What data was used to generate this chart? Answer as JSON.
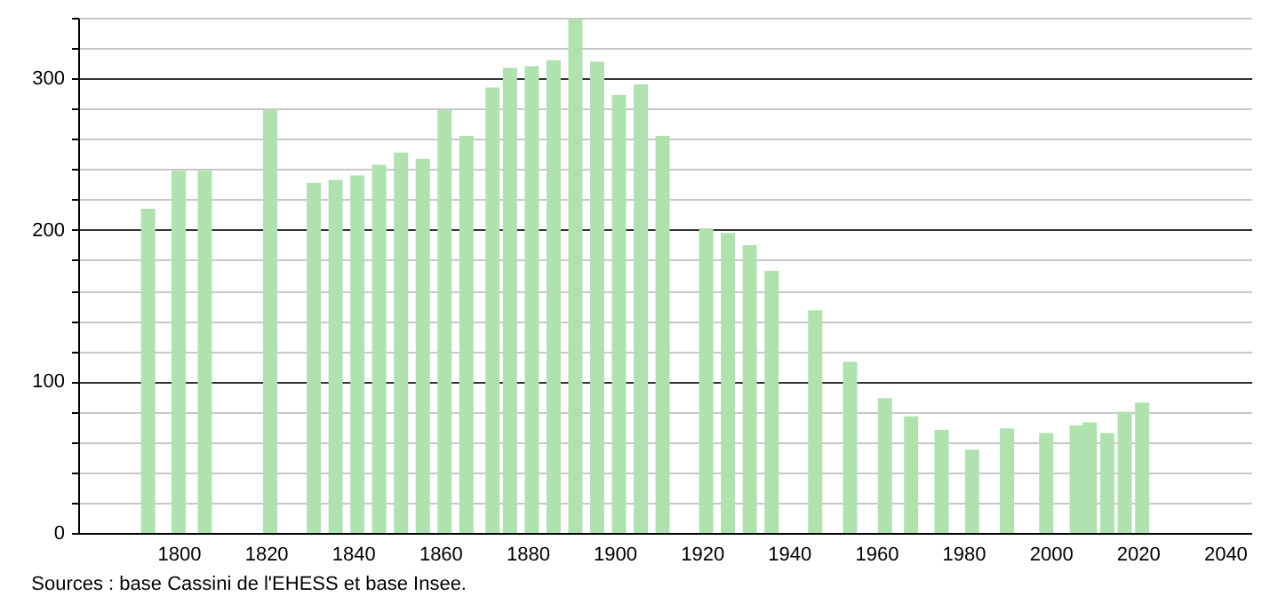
{
  "chart_data": {
    "type": "bar",
    "color": "#b0e2b0",
    "x": [
      1793,
      1800,
      1806,
      1821,
      1831,
      1836,
      1841,
      1846,
      1851,
      1856,
      1861,
      1866,
      1872,
      1876,
      1881,
      1886,
      1891,
      1896,
      1901,
      1906,
      1911,
      1921,
      1926,
      1931,
      1936,
      1946,
      1954,
      1962,
      1968,
      1975,
      1982,
      1990,
      1999,
      2006,
      2009,
      2013,
      2017,
      2021
    ],
    "values": [
      214,
      239,
      239,
      279,
      231,
      233,
      236,
      243,
      251,
      247,
      279,
      262,
      294,
      307,
      308,
      312,
      339,
      311,
      289,
      296,
      262,
      201,
      198,
      190,
      173,
      147,
      113,
      89,
      77,
      68,
      55,
      69,
      66,
      71,
      73,
      66,
      80,
      86
    ],
    "xlim": [
      1779,
      2044
    ],
    "xticks": [
      1800,
      1820,
      1840,
      1860,
      1880,
      1900,
      1920,
      1940,
      1960,
      1980,
      2000,
      2020,
      2040
    ],
    "ylim": [
      0,
      340
    ],
    "yticks": [
      0,
      {
        "value": 20,
        "label": null
      },
      {
        "value": 40,
        "label": null
      },
      {
        "value": 60,
        "label": null
      },
      {
        "value": 80,
        "label": null
      },
      100,
      {
        "value": 120,
        "label": null
      },
      {
        "value": 140,
        "label": null
      },
      {
        "value": 160,
        "label": null
      },
      {
        "value": 180,
        "label": null
      },
      200,
      {
        "value": 220,
        "label": null
      },
      {
        "value": 240,
        "label": null
      },
      {
        "value": 260,
        "label": null
      },
      {
        "value": 280,
        "label": null
      },
      300,
      {
        "value": 320,
        "label": null
      },
      {
        "value": 340,
        "label": null
      }
    ],
    "grid": "y",
    "annotations": [
      "Sources : base Cassini de l'EHESS et base Insee."
    ]
  }
}
